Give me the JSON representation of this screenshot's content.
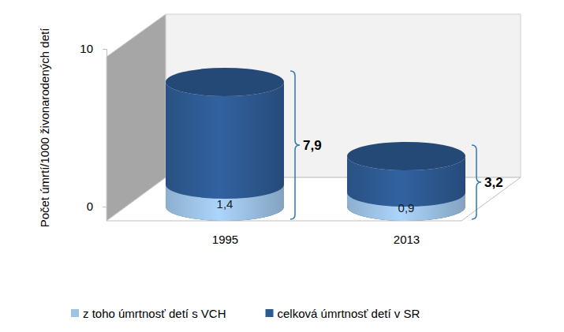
{
  "chart_data": {
    "type": "bar",
    "y_label": "Počet úmrtí/1000 živonarodených detí",
    "categories": [
      "1995",
      "2013"
    ],
    "series": [
      {
        "name": "z toho úmrtnosť detí s VCH",
        "color": "#9dc3e6",
        "values": [
          1.4,
          0.9
        ],
        "value_labels": [
          "1,4",
          "0,9"
        ]
      },
      {
        "name": "celková úmrtnosť detí v SR",
        "color": "#2e5a92",
        "values": [
          7.9,
          3.2
        ],
        "value_labels": [
          "7,9",
          "3,2"
        ]
      }
    ],
    "ylim": [
      0,
      10
    ],
    "yticks": [
      0,
      10
    ],
    "stacked": false,
    "data_labels": true,
    "legend": "bottom",
    "grid": false
  }
}
